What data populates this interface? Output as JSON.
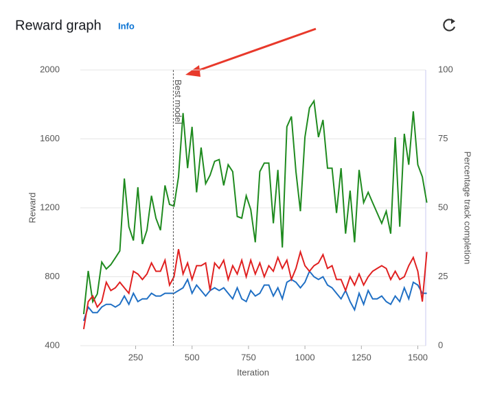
{
  "header": {
    "title": "Reward graph",
    "info": "Info"
  },
  "chart_data": {
    "type": "line",
    "xlabel": "Iteration",
    "ylabel": "Reward",
    "y2label": "Percentage track completion",
    "x": [
      20,
      40,
      60,
      80,
      100,
      120,
      140,
      160,
      180,
      200,
      220,
      240,
      260,
      280,
      300,
      320,
      340,
      360,
      380,
      400,
      420,
      440,
      460,
      480,
      500,
      520,
      540,
      560,
      580,
      600,
      620,
      640,
      660,
      680,
      700,
      720,
      740,
      760,
      780,
      800,
      820,
      840,
      860,
      880,
      900,
      920,
      940,
      960,
      980,
      1000,
      1020,
      1040,
      1060,
      1080,
      1100,
      1120,
      1140,
      1160,
      1180,
      1200,
      1220,
      1240,
      1260,
      1280,
      1300,
      1320,
      1340,
      1360,
      1380,
      1400,
      1420,
      1440,
      1460,
      1480,
      1500,
      1520,
      1540
    ],
    "series": [
      {
        "color": "#1e8a1e",
        "values": [
          583,
          834,
          655,
          700,
          885,
          845,
          870,
          910,
          950,
          1370,
          1090,
          1010,
          1320,
          990,
          1070,
          1270,
          1140,
          1070,
          1330,
          1220,
          1210,
          1380,
          1750,
          1430,
          1670,
          1290,
          1550,
          1340,
          1390,
          1470,
          1480,
          1330,
          1450,
          1410,
          1150,
          1140,
          1270,
          1190,
          1000,
          1410,
          1460,
          1460,
          1110,
          1420,
          970,
          1670,
          1730,
          1410,
          1180,
          1610,
          1780,
          1820,
          1610,
          1710,
          1430,
          1430,
          1170,
          1430,
          1050,
          1300,
          1000,
          1420,
          1230,
          1290,
          1230,
          1170,
          1110,
          1180,
          1050,
          1610,
          1090,
          1630,
          1450,
          1760,
          1450,
          1380,
          1230
        ]
      },
      {
        "color": "#1f6fc4",
        "axis": "y2",
        "values": [
          9,
          14,
          12,
          12,
          14,
          15,
          15,
          14,
          15,
          18,
          15,
          19,
          16,
          17,
          17,
          19,
          18,
          18,
          19,
          19,
          19,
          20,
          21,
          24,
          19,
          22,
          20,
          18,
          20,
          21,
          20,
          21,
          19,
          17,
          21,
          17,
          16,
          20,
          18,
          19,
          22,
          22,
          18,
          21,
          17,
          23,
          24,
          23,
          21,
          23,
          27,
          25,
          24,
          25,
          22,
          21,
          19,
          17,
          20,
          16,
          13,
          19,
          15,
          20,
          17,
          17,
          18,
          16,
          15,
          18,
          16,
          21,
          17,
          23,
          22,
          19,
          19
        ]
      },
      {
        "color": "#e02020",
        "axis": "y2",
        "values": [
          6,
          16,
          18,
          14,
          16,
          23,
          20,
          21,
          23,
          21,
          19,
          27,
          26,
          24,
          26,
          30,
          27,
          27,
          31,
          22,
          25,
          35,
          26,
          30,
          24,
          29,
          29,
          30,
          20,
          30,
          28,
          31,
          24,
          29,
          26,
          31,
          25,
          31,
          26,
          30,
          25,
          29,
          27,
          32,
          28,
          31,
          24,
          28,
          34,
          29,
          27,
          29,
          30,
          33,
          28,
          29,
          24,
          24,
          20,
          25,
          22,
          26,
          22,
          25,
          27,
          28,
          29,
          28,
          24,
          27,
          24,
          25,
          29,
          32,
          27,
          16,
          34
        ]
      }
    ],
    "annotations": [
      {
        "text": "Best model",
        "x": 417
      }
    ],
    "xlim": [
      5,
      1535
    ],
    "ylim": [
      400,
      2000
    ],
    "y2lim": [
      0,
      100
    ],
    "xticks": [
      250,
      500,
      750,
      1000,
      1250,
      1500
    ],
    "yticks": [
      400,
      800,
      1200,
      1600,
      2000
    ],
    "y2ticks": [
      0,
      25,
      50,
      75,
      100
    ],
    "grid": true
  }
}
